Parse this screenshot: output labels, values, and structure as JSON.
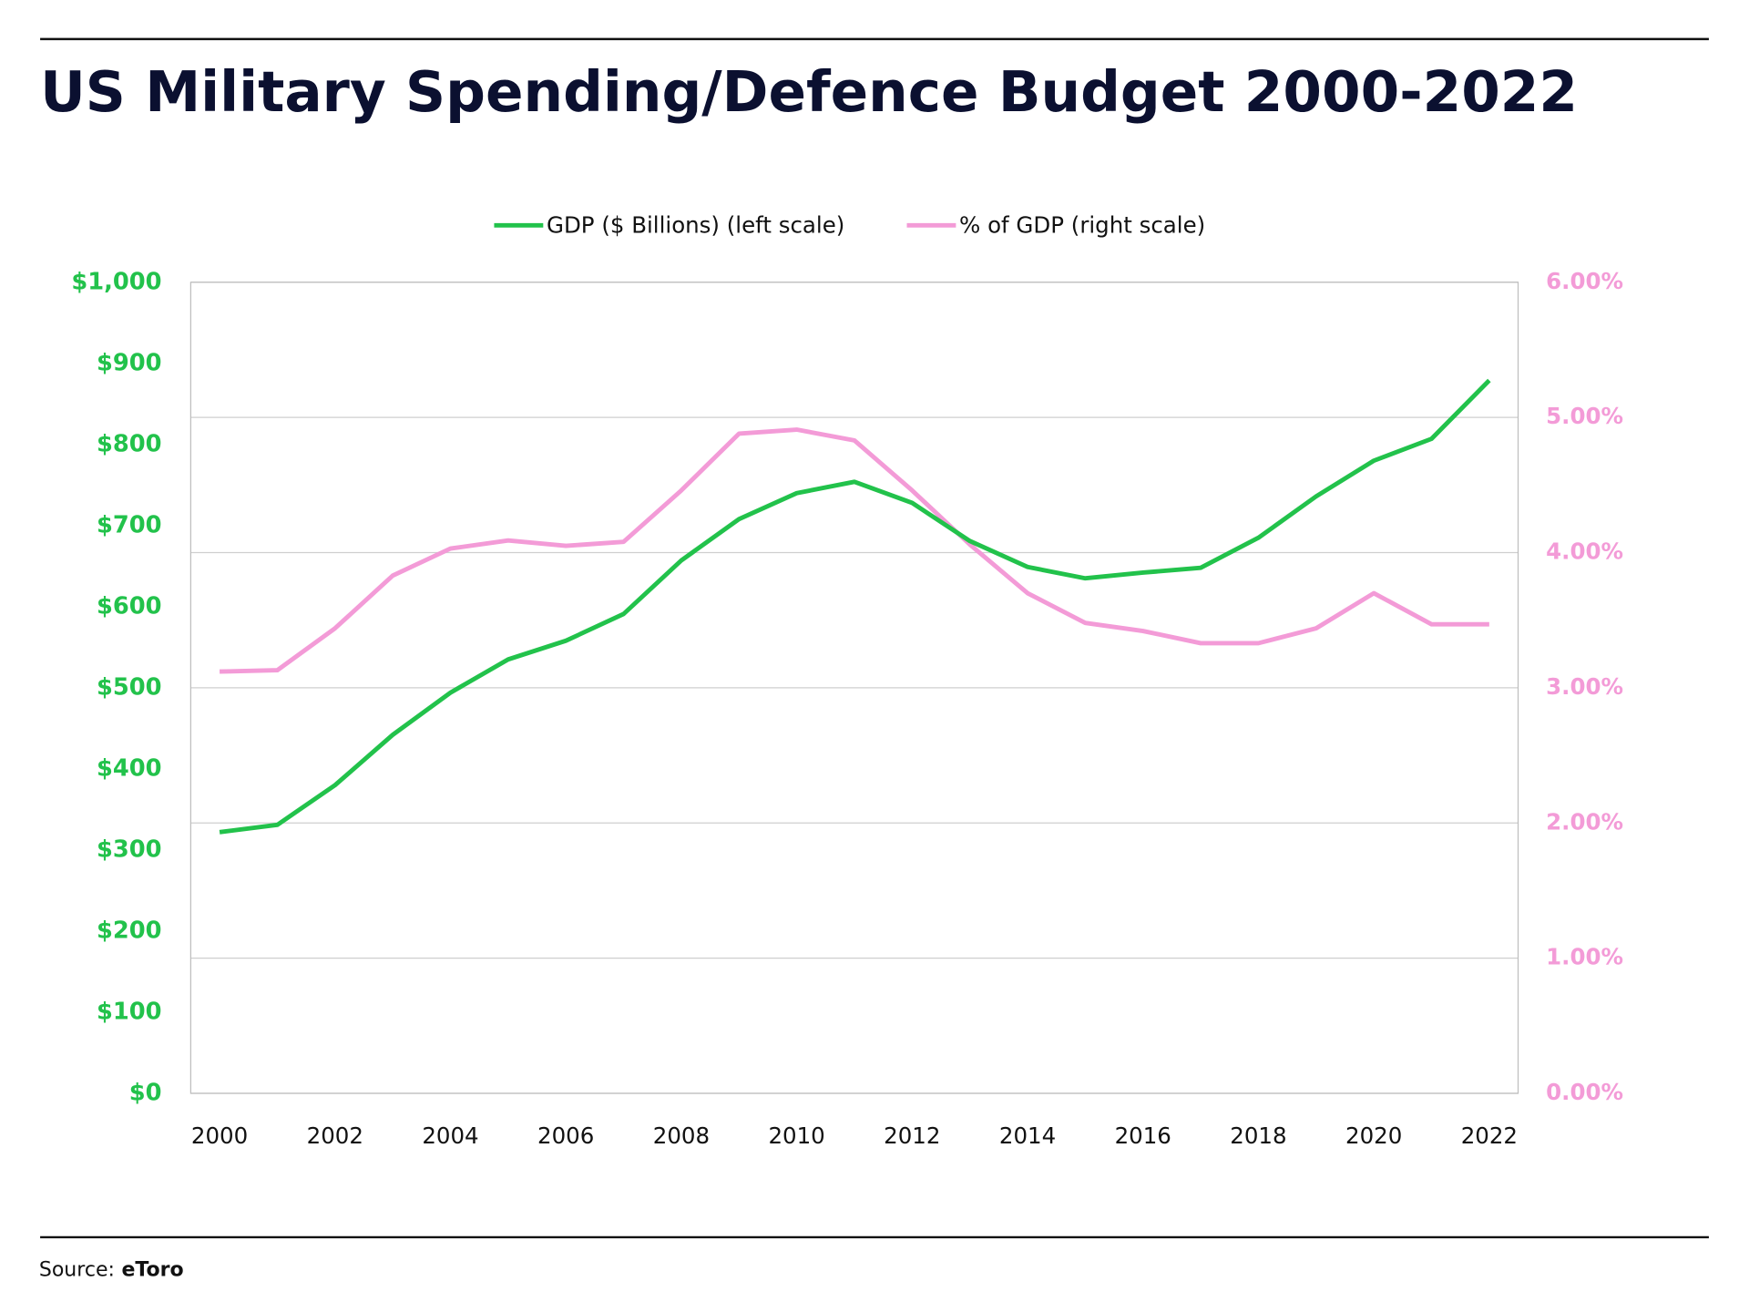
{
  "chart_data": {
    "type": "line",
    "title": "US Military Spending/Defence Budget 2000-2022",
    "source_label": "Source:",
    "source": "eToro",
    "x": [
      2000,
      2001,
      2002,
      2003,
      2004,
      2005,
      2006,
      2007,
      2008,
      2009,
      2010,
      2011,
      2012,
      2013,
      2014,
      2015,
      2016,
      2017,
      2018,
      2019,
      2020,
      2021,
      2022
    ],
    "series": [
      {
        "name": "GDP ($ Billions) (left scale)",
        "color": "#22c24b",
        "axis": "y",
        "values": [
          322,
          331,
          380,
          442,
          494,
          535,
          558,
          591,
          657,
          708,
          740,
          754,
          728,
          681,
          649,
          635,
          642,
          648,
          685,
          736,
          780,
          807,
          879
        ]
      },
      {
        "name": "% of GDP (right scale)",
        "color": "#f39bd7",
        "axis": "y2",
        "values": [
          3.12,
          3.13,
          3.44,
          3.83,
          4.03,
          4.09,
          4.05,
          4.08,
          4.46,
          4.88,
          4.91,
          4.83,
          4.46,
          4.06,
          3.7,
          3.48,
          3.42,
          3.33,
          3.33,
          3.44,
          3.7,
          3.47,
          3.47
        ]
      }
    ],
    "xlim": [
      1999.5,
      2022.5
    ],
    "xticks": [
      2000,
      2002,
      2004,
      2006,
      2008,
      2010,
      2012,
      2014,
      2016,
      2018,
      2020,
      2022
    ],
    "ylim": [
      0,
      1000
    ],
    "yticks": [
      {
        "value": 0,
        "label": "$0"
      },
      {
        "value": 100,
        "label": "$100"
      },
      {
        "value": 200,
        "label": "$200"
      },
      {
        "value": 300,
        "label": "$300"
      },
      {
        "value": 400,
        "label": "$400"
      },
      {
        "value": 500,
        "label": "$500"
      },
      {
        "value": 600,
        "label": "$600"
      },
      {
        "value": 700,
        "label": "$700"
      },
      {
        "value": 800,
        "label": "$800"
      },
      {
        "value": 900,
        "label": "$900"
      },
      {
        "value": 1000,
        "label": "$1,000"
      }
    ],
    "y2lim": [
      0,
      6
    ],
    "y2ticks": [
      {
        "value": 0,
        "label": "0.00%"
      },
      {
        "value": 1,
        "label": "1.00%"
      },
      {
        "value": 2,
        "label": "2.00%"
      },
      {
        "value": 3,
        "label": "3.00%"
      },
      {
        "value": 4,
        "label": "4.00%"
      },
      {
        "value": 5,
        "label": "5.00%"
      },
      {
        "value": 6,
        "label": "6.00%"
      }
    ],
    "grid": "y2",
    "legend": "top"
  }
}
